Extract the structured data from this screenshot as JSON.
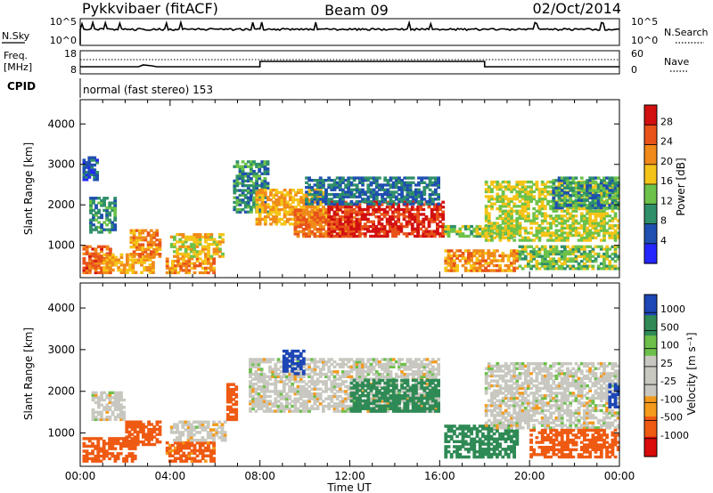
{
  "header": {
    "station": "Pykkvibaer (fitACF)",
    "beam": "Beam 09",
    "date": "02/Oct/2014"
  },
  "top_panels": {
    "nsky_label": "N.Sky",
    "nsky_ticks": [
      "10^5",
      "10^0"
    ],
    "nsearch_label": "N.Search",
    "nsearch_ticks": [
      "10^5",
      "10^0"
    ],
    "freq_label_line1": "Freq.",
    "freq_label_line2": "[MHz]",
    "freq_ticks": [
      "18",
      "8"
    ],
    "nave_label": "Nave",
    "nave_ticks": [
      "60",
      "0"
    ],
    "cpid_label": "CPID",
    "cpid_text": "normal (fast stereo) 153"
  },
  "colors": {
    "power": [
      "#2525ff",
      "#1f4fb0",
      "#2f8f6a",
      "#6cc24a",
      "#f5c418",
      "#f08a1a",
      "#e8531a",
      "#d21010"
    ],
    "velocity": [
      "#d90a0a",
      "#ef5a12",
      "#f49a1c",
      "#c8c8c0",
      "#c8c8c0",
      "#6cc04a",
      "#2f8a55",
      "#1d46b6"
    ]
  },
  "chart_data": [
    {
      "type": "heatmap",
      "name": "power",
      "ylabel": "Slant Range [km]",
      "yticks": [
        "1000",
        "2000",
        "3000",
        "4000"
      ],
      "ylim": [
        200,
        4600
      ],
      "x": [
        "00:00",
        "04:00",
        "08:00",
        "12:00",
        "16:00",
        "20:00",
        "00:00"
      ],
      "colorbar_label": "Power [dB]",
      "colorbar_ticks": [
        "4",
        "8",
        "12",
        "16",
        "20",
        "24",
        "28"
      ],
      "colorbar_range": [
        0,
        32
      ],
      "patches": [
        {
          "t0": 0.1,
          "t1": 1.4,
          "r0": 300,
          "r1": 1000,
          "v": 25
        },
        {
          "t0": 1.0,
          "t1": 3.3,
          "r0": 300,
          "r1": 800,
          "v": 20
        },
        {
          "t0": 2.2,
          "t1": 3.6,
          "r0": 700,
          "r1": 1400,
          "v": 22
        },
        {
          "t0": 0.4,
          "t1": 1.6,
          "r0": 1300,
          "r1": 2200,
          "v": 10
        },
        {
          "t0": 0.1,
          "t1": 0.8,
          "r0": 2600,
          "r1": 3200,
          "v": 6
        },
        {
          "t0": 3.8,
          "t1": 6.0,
          "r0": 300,
          "r1": 700,
          "v": 22
        },
        {
          "t0": 4.0,
          "t1": 6.4,
          "r0": 700,
          "r1": 1300,
          "v": 18
        },
        {
          "t0": 6.8,
          "t1": 8.4,
          "r0": 1800,
          "r1": 3100,
          "v": 10
        },
        {
          "t0": 7.8,
          "t1": 11.0,
          "r0": 1500,
          "r1": 2400,
          "v": 20
        },
        {
          "t0": 9.5,
          "t1": 12.5,
          "r0": 1200,
          "r1": 1900,
          "v": 24
        },
        {
          "t0": 11.0,
          "t1": 16.2,
          "r0": 1200,
          "r1": 2100,
          "v": 29
        },
        {
          "t0": 10.0,
          "t1": 16.0,
          "r0": 2000,
          "r1": 2700,
          "v": 8
        },
        {
          "t0": 16.2,
          "t1": 19.5,
          "r0": 350,
          "r1": 900,
          "v": 22
        },
        {
          "t0": 16.2,
          "t1": 19.5,
          "r0": 1200,
          "r1": 1500,
          "v": 14
        },
        {
          "t0": 18.0,
          "t1": 24.0,
          "r0": 1100,
          "r1": 2600,
          "v": 16
        },
        {
          "t0": 19.5,
          "t1": 24.0,
          "r0": 400,
          "r1": 1000,
          "v": 14
        },
        {
          "t0": 21.0,
          "t1": 24.0,
          "r0": 1900,
          "r1": 2700,
          "v": 10
        }
      ]
    },
    {
      "type": "heatmap",
      "name": "velocity",
      "ylabel": "Slant Range [km]",
      "yticks": [
        "1000",
        "2000",
        "3000",
        "4000"
      ],
      "ylim": [
        200,
        4600
      ],
      "x": [
        "00:00",
        "04:00",
        "08:00",
        "12:00",
        "16:00",
        "20:00",
        "00:00"
      ],
      "xlabel": "Time UT",
      "colorbar_label": "Velocity [m s⁻¹]",
      "colorbar_ticks": [
        "1000",
        "500",
        "100",
        "25",
        "-25",
        "-100",
        "-500",
        "-1000"
      ],
      "patches": [
        {
          "t0": 0.1,
          "t1": 2.5,
          "r0": 300,
          "r1": 900,
          "v": -150
        },
        {
          "t0": 2.0,
          "t1": 3.6,
          "r0": 700,
          "r1": 1300,
          "v": -200
        },
        {
          "t0": 0.5,
          "t1": 2.0,
          "r0": 1300,
          "r1": 2000,
          "v": 0
        },
        {
          "t0": 3.8,
          "t1": 6.0,
          "r0": 300,
          "r1": 800,
          "v": -120
        },
        {
          "t0": 4.0,
          "t1": 6.5,
          "r0": 800,
          "r1": 1300,
          "v": 0
        },
        {
          "t0": 6.5,
          "t1": 7.0,
          "r0": 1300,
          "r1": 2200,
          "v": -400
        },
        {
          "t0": 7.5,
          "t1": 16.0,
          "r0": 1500,
          "r1": 2800,
          "v": 0
        },
        {
          "t0": 12.0,
          "t1": 16.0,
          "r0": 1500,
          "r1": 2300,
          "v": 200
        },
        {
          "t0": 9.0,
          "t1": 10.0,
          "r0": 2400,
          "r1": 3000,
          "v": 600
        },
        {
          "t0": 16.2,
          "t1": 19.5,
          "r0": 400,
          "r1": 1200,
          "v": 200
        },
        {
          "t0": 18.0,
          "t1": 24.0,
          "r0": 1100,
          "r1": 2700,
          "v": 0
        },
        {
          "t0": 20.0,
          "t1": 24.0,
          "r0": 400,
          "r1": 1100,
          "v": -200
        },
        {
          "t0": 23.5,
          "t1": 24.0,
          "r0": 1600,
          "r1": 2200,
          "v": 600
        }
      ]
    }
  ]
}
